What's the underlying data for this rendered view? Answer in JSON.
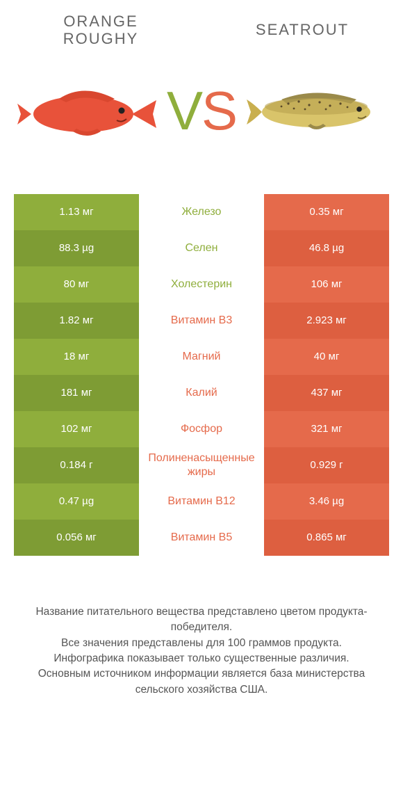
{
  "colors": {
    "green": "#8fae3c",
    "green_dark": "#7e9c34",
    "orange": "#e56a4b",
    "orange_dark": "#dd5f40",
    "mid_text_green": "#8fae3c",
    "mid_text_orange": "#e56a4b"
  },
  "header": {
    "left_title": "ORANGE ROUGHY",
    "right_title": "SEATROUT",
    "vs_v": "V",
    "vs_s": "S"
  },
  "rows": [
    {
      "left": "1.13 мг",
      "mid": "Железо",
      "right": "0.35 мг",
      "winner": "left"
    },
    {
      "left": "88.3 µg",
      "mid": "Селен",
      "right": "46.8 µg",
      "winner": "left"
    },
    {
      "left": "80 мг",
      "mid": "Холестерин",
      "right": "106 мг",
      "winner": "left"
    },
    {
      "left": "1.82 мг",
      "mid": "Витамин B3",
      "right": "2.923 мг",
      "winner": "right"
    },
    {
      "left": "18 мг",
      "mid": "Магний",
      "right": "40 мг",
      "winner": "right"
    },
    {
      "left": "181 мг",
      "mid": "Калий",
      "right": "437 мг",
      "winner": "right"
    },
    {
      "left": "102 мг",
      "mid": "Фосфор",
      "right": "321 мг",
      "winner": "right"
    },
    {
      "left": "0.184 г",
      "mid": "Полиненасыщенные жиры",
      "right": "0.929 г",
      "winner": "right"
    },
    {
      "left": "0.47 µg",
      "mid": "Витамин B12",
      "right": "3.46 µg",
      "winner": "right"
    },
    {
      "left": "0.056 мг",
      "mid": "Витамин B5",
      "right": "0.865 мг",
      "winner": "right"
    }
  ],
  "footer": {
    "line1": "Название питательного вещества представлено цветом продукта-победителя.",
    "line2": "Все значения представлены для 100 граммов продукта.",
    "line3": "Инфографика показывает только существенные различия.",
    "line4": "Основным источником информации является база министерства сельского хозяйства США."
  }
}
